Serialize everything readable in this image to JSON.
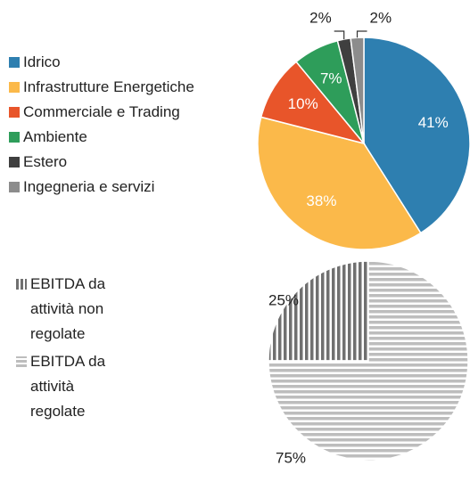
{
  "chart_data": [
    {
      "type": "pie",
      "categories": [
        "Idrico",
        "Infrastrutture Energetiche",
        "Commerciale e Trading",
        "Ambiente",
        "Estero",
        "Ingegneria e servizi"
      ],
      "values": [
        41,
        38,
        10,
        7,
        2,
        2
      ],
      "value_labels": [
        "41%",
        "38%",
        "10%",
        "7%",
        "2%",
        "2%"
      ],
      "colors": [
        "#2e7fb0",
        "#fbb94a",
        "#e8552a",
        "#2e9d5a",
        "#3f3f3f",
        "#8c8c8c"
      ]
    },
    {
      "type": "pie",
      "categories": [
        "EBITDA da attività non regolate",
        "EBITDA da attività regolate"
      ],
      "values": [
        25,
        75
      ],
      "value_labels": [
        "25%",
        "75%"
      ],
      "colors": [
        "#707070",
        "#bdbdbd"
      ],
      "patterns": [
        "vertical",
        "horizontal"
      ]
    }
  ]
}
